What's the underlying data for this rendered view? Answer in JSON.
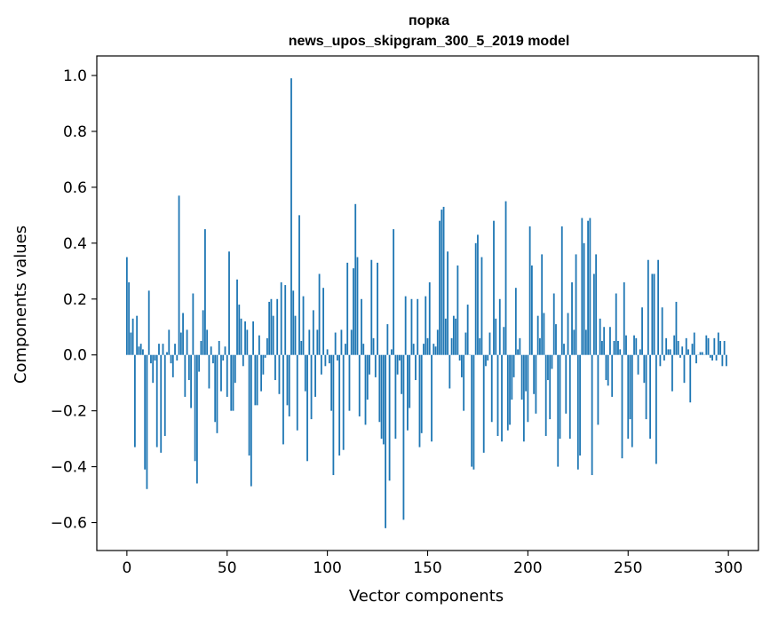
{
  "chart_data": {
    "type": "bar",
    "title": "порка",
    "subtitle": "news_upos_skipgram_300_5_2019 model",
    "xlabel": "Vector components",
    "ylabel": "Components values",
    "xlim": [
      -15,
      315
    ],
    "ylim": [
      -0.7,
      1.07
    ],
    "xticks": [
      0,
      50,
      100,
      150,
      200,
      250,
      300
    ],
    "xtick_labels": [
      "0",
      "50",
      "100",
      "150",
      "200",
      "250",
      "300"
    ],
    "yticks": [
      -0.6,
      -0.4,
      -0.2,
      0.0,
      0.2,
      0.4,
      0.6,
      0.8,
      1.0
    ],
    "ytick_labels": [
      "−0.6",
      "−0.4",
      "−0.2",
      "0.0",
      "0.2",
      "0.4",
      "0.6",
      "0.8",
      "1.0"
    ],
    "grid": false,
    "bar_color": "#1f77b4",
    "x": [
      0,
      1,
      2,
      3,
      4,
      5,
      6,
      7,
      8,
      9,
      10,
      11,
      12,
      13,
      14,
      15,
      16,
      17,
      18,
      19,
      20,
      21,
      22,
      23,
      24,
      25,
      26,
      27,
      28,
      29,
      30,
      31,
      32,
      33,
      34,
      35,
      36,
      37,
      38,
      39,
      40,
      41,
      42,
      43,
      44,
      45,
      46,
      47,
      48,
      49,
      50,
      51,
      52,
      53,
      54,
      55,
      56,
      57,
      58,
      59,
      60,
      61,
      62,
      63,
      64,
      65,
      66,
      67,
      68,
      69,
      70,
      71,
      72,
      73,
      74,
      75,
      76,
      77,
      78,
      79,
      80,
      81,
      82,
      83,
      84,
      85,
      86,
      87,
      88,
      89,
      90,
      91,
      92,
      93,
      94,
      95,
      96,
      97,
      98,
      99,
      100,
      101,
      102,
      103,
      104,
      105,
      106,
      107,
      108,
      109,
      110,
      111,
      112,
      113,
      114,
      115,
      116,
      117,
      118,
      119,
      120,
      121,
      122,
      123,
      124,
      125,
      126,
      127,
      128,
      129,
      130,
      131,
      132,
      133,
      134,
      135,
      136,
      137,
      138,
      139,
      140,
      141,
      142,
      143,
      144,
      145,
      146,
      147,
      148,
      149,
      150,
      151,
      152,
      153,
      154,
      155,
      156,
      157,
      158,
      159,
      160,
      161,
      162,
      163,
      164,
      165,
      166,
      167,
      168,
      169,
      170,
      171,
      172,
      173,
      174,
      175,
      176,
      177,
      178,
      179,
      180,
      181,
      182,
      183,
      184,
      185,
      186,
      187,
      188,
      189,
      190,
      191,
      192,
      193,
      194,
      195,
      196,
      197,
      198,
      199,
      200,
      201,
      202,
      203,
      204,
      205,
      206,
      207,
      208,
      209,
      210,
      211,
      212,
      213,
      214,
      215,
      216,
      217,
      218,
      219,
      220,
      221,
      222,
      223,
      224,
      225,
      226,
      227,
      228,
      229,
      230,
      231,
      232,
      233,
      234,
      235,
      236,
      237,
      238,
      239,
      240,
      241,
      242,
      243,
      244,
      245,
      246,
      247,
      248,
      249,
      250,
      251,
      252,
      253,
      254,
      255,
      256,
      257,
      258,
      259,
      260,
      261,
      262,
      263,
      264,
      265,
      266,
      267,
      268,
      269,
      270,
      271,
      272,
      273,
      274,
      275,
      276,
      277,
      278,
      279,
      280,
      281,
      282,
      283,
      284,
      285,
      286,
      287,
      288,
      289,
      290,
      291,
      292,
      293,
      294,
      295,
      296,
      297,
      298,
      299
    ],
    "values": [
      0.35,
      0.26,
      0.08,
      0.13,
      -0.33,
      0.14,
      0.03,
      0.04,
      0.02,
      -0.41,
      -0.48,
      0.23,
      -0.03,
      -0.1,
      -0.02,
      -0.33,
      0.04,
      -0.35,
      0.04,
      -0.29,
      0.01,
      0.09,
      -0.03,
      -0.08,
      0.04,
      -0.02,
      0.57,
      0.08,
      0.15,
      -0.15,
      0.09,
      -0.09,
      -0.19,
      0.22,
      -0.38,
      -0.46,
      -0.06,
      0.05,
      0.16,
      0.45,
      0.09,
      -0.12,
      0.03,
      -0.03,
      -0.24,
      -0.28,
      0.05,
      -0.13,
      -0.02,
      0.03,
      -0.15,
      0.37,
      -0.2,
      -0.2,
      -0.1,
      0.27,
      0.18,
      0.13,
      -0.04,
      0.12,
      0.09,
      -0.36,
      -0.47,
      0.12,
      -0.18,
      -0.18,
      0.07,
      -0.13,
      -0.07,
      -0.01,
      0.06,
      0.19,
      0.2,
      0.14,
      -0.09,
      0.2,
      -0.14,
      0.26,
      -0.32,
      0.25,
      -0.18,
      -0.22,
      0.99,
      0.23,
      0.14,
      -0.27,
      0.5,
      0.05,
      0.21,
      -0.13,
      -0.38,
      0.09,
      -0.23,
      0.16,
      -0.15,
      0.09,
      0.29,
      -0.07,
      0.24,
      -0.04,
      0.02,
      -0.03,
      -0.2,
      -0.43,
      0.08,
      -0.02,
      -0.36,
      0.09,
      -0.34,
      0.04,
      0.33,
      -0.2,
      0.09,
      0.31,
      0.54,
      0.35,
      -0.22,
      0.2,
      0.04,
      -0.25,
      -0.16,
      -0.07,
      0.34,
      0.06,
      -0.08,
      0.33,
      -0.24,
      -0.3,
      -0.32,
      -0.62,
      0.11,
      -0.45,
      0.02,
      0.45,
      -0.3,
      -0.07,
      -0.02,
      -0.14,
      -0.59,
      0.21,
      -0.27,
      -0.19,
      0.2,
      0.04,
      -0.09,
      0.2,
      -0.33,
      -0.28,
      0.04,
      0.21,
      0.06,
      0.26,
      -0.31,
      0.04,
      0.03,
      0.09,
      0.48,
      0.52,
      0.53,
      0.13,
      0.37,
      -0.12,
      0.06,
      0.14,
      0.13,
      0.32,
      -0.02,
      -0.08,
      -0.2,
      0.08,
      0.18,
      0.0,
      -0.4,
      -0.41,
      0.4,
      0.43,
      0.06,
      0.35,
      -0.35,
      -0.04,
      -0.02,
      0.08,
      -0.24,
      0.48,
      0.13,
      -0.29,
      0.2,
      -0.31,
      0.1,
      0.55,
      -0.27,
      -0.25,
      -0.16,
      -0.08,
      0.24,
      0.02,
      0.06,
      -0.16,
      -0.31,
      -0.13,
      -0.24,
      0.46,
      0.32,
      -0.14,
      -0.21,
      0.14,
      0.06,
      0.36,
      0.15,
      -0.29,
      -0.09,
      -0.23,
      -0.05,
      0.22,
      0.11,
      -0.4,
      -0.3,
      0.46,
      0.04,
      -0.21,
      0.15,
      -0.3,
      0.26,
      0.09,
      0.36,
      -0.41,
      -0.36,
      0.49,
      0.4,
      0.09,
      0.48,
      0.49,
      -0.43,
      0.29,
      0.36,
      -0.25,
      0.13,
      0.05,
      0.1,
      -0.09,
      -0.11,
      0.1,
      -0.15,
      0.05,
      0.22,
      0.05,
      0.02,
      -0.37,
      0.26,
      0.07,
      -0.3,
      -0.23,
      -0.33,
      0.07,
      0.06,
      -0.07,
      0.02,
      0.17,
      -0.1,
      -0.23,
      0.34,
      -0.3,
      0.29,
      0.29,
      -0.39,
      0.34,
      -0.04,
      0.17,
      -0.02,
      0.06,
      0.02,
      0.02,
      -0.13,
      0.07,
      0.19,
      0.05,
      -0.01,
      0.03,
      -0.1,
      0.06,
      0.02,
      -0.17,
      0.04,
      0.08,
      -0.03,
      0.0,
      0.01,
      0.01,
      0.0,
      0.07,
      0.06,
      -0.01,
      -0.02,
      0.06,
      -0.02,
      0.08,
      0.05,
      -0.04,
      0.05,
      -0.04
    ]
  }
}
